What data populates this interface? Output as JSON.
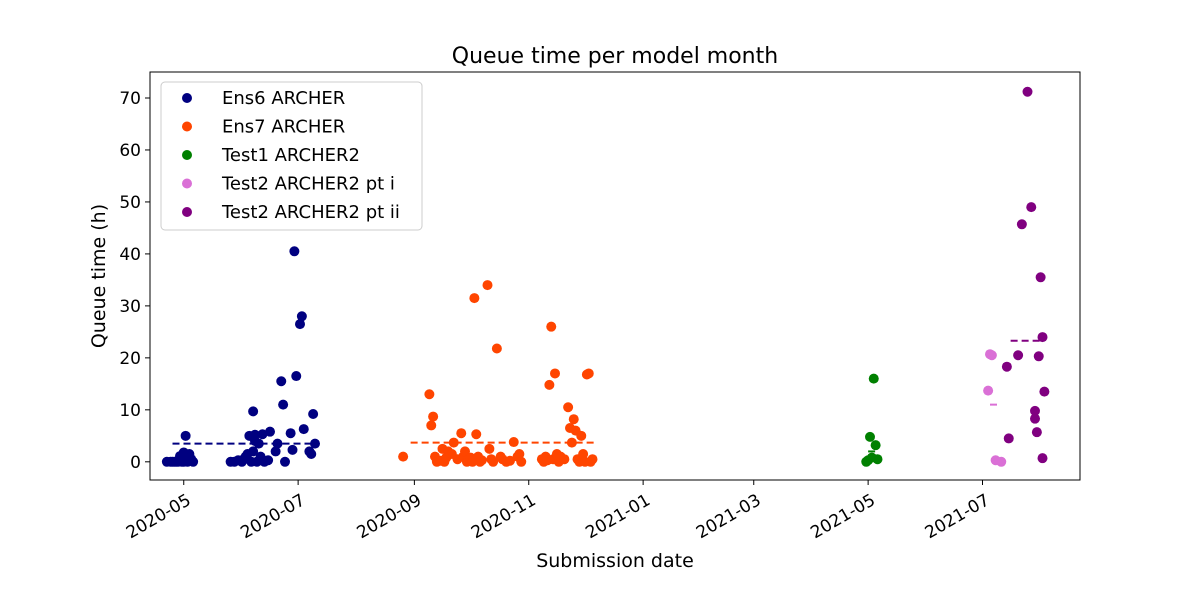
{
  "chart_data": {
    "type": "scatter",
    "title": "Queue time per model month",
    "xlabel": "Submission date",
    "ylabel": "Queue time (h)",
    "x_axis_type": "date",
    "xlim": [
      "2020-04-13",
      "2021-08-22"
    ],
    "ylim": [
      -3.5,
      75
    ],
    "x_ticks": [
      "2020-05-01",
      "2020-07-01",
      "2020-09-01",
      "2020-11-01",
      "2021-01-01",
      "2021-03-01",
      "2021-05-01",
      "2021-07-01"
    ],
    "x_tick_labels": [
      "2020-05",
      "2020-07",
      "2020-09",
      "2020-11",
      "2021-01",
      "2021-03",
      "2021-05",
      "2021-07"
    ],
    "y_ticks": [
      0,
      10,
      20,
      30,
      40,
      50,
      60,
      70
    ],
    "grid": false,
    "legend_position": "upper-left",
    "series": [
      {
        "name": "Ens6 ARCHER",
        "color": "#000080",
        "points": [
          [
            "2020-04-22",
            0
          ],
          [
            "2020-04-24",
            0
          ],
          [
            "2020-04-25",
            0
          ],
          [
            "2020-04-26",
            0
          ],
          [
            "2020-04-27",
            0
          ],
          [
            "2020-04-28",
            0
          ],
          [
            "2020-04-29",
            1.1
          ],
          [
            "2020-04-30",
            0
          ],
          [
            "2020-05-01",
            1.8
          ],
          [
            "2020-05-01",
            0
          ],
          [
            "2020-05-02",
            5
          ],
          [
            "2020-05-02",
            1
          ],
          [
            "2020-05-03",
            0
          ],
          [
            "2020-05-04",
            1.5
          ],
          [
            "2020-05-05",
            0.5
          ],
          [
            "2020-05-06",
            0
          ],
          [
            "2020-05-26",
            0
          ],
          [
            "2020-05-28",
            0
          ],
          [
            "2020-05-30",
            0.3
          ],
          [
            "2020-06-01",
            0
          ],
          [
            "2020-06-02",
            0.5
          ],
          [
            "2020-06-03",
            1
          ],
          [
            "2020-06-04",
            1.5
          ],
          [
            "2020-06-05",
            5
          ],
          [
            "2020-06-06",
            0
          ],
          [
            "2020-06-07",
            9.7
          ],
          [
            "2020-06-07",
            2
          ],
          [
            "2020-06-08",
            5.2
          ],
          [
            "2020-06-08",
            4
          ],
          [
            "2020-06-09",
            0
          ],
          [
            "2020-06-10",
            3.5
          ],
          [
            "2020-06-11",
            1
          ],
          [
            "2020-06-12",
            5.3
          ],
          [
            "2020-06-13",
            0
          ],
          [
            "2020-06-15",
            0.3
          ],
          [
            "2020-06-16",
            5.8
          ],
          [
            "2020-06-19",
            2
          ],
          [
            "2020-06-20",
            3.5
          ],
          [
            "2020-06-22",
            15.5
          ],
          [
            "2020-06-23",
            11
          ],
          [
            "2020-06-24",
            0
          ],
          [
            "2020-06-27",
            5.5
          ],
          [
            "2020-06-28",
            2.3
          ],
          [
            "2020-06-29",
            40.5
          ],
          [
            "2020-06-30",
            16.5
          ],
          [
            "2020-07-02",
            26.5
          ],
          [
            "2020-07-03",
            28
          ],
          [
            "2020-07-04",
            6.3
          ],
          [
            "2020-07-07",
            2
          ],
          [
            "2020-07-08",
            1.5
          ],
          [
            "2020-07-09",
            9.2
          ],
          [
            "2020-07-10",
            3.5
          ]
        ],
        "median_line": {
          "y": 3.5,
          "from": "2020-04-25",
          "to": "2020-07-10"
        }
      },
      {
        "name": "Ens7 ARCHER",
        "color": "#ff4500",
        "points": [
          [
            "2020-08-26",
            1
          ],
          [
            "2020-09-09",
            13
          ],
          [
            "2020-09-10",
            7
          ],
          [
            "2020-09-11",
            8.7
          ],
          [
            "2020-09-12",
            1
          ],
          [
            "2020-09-13",
            0
          ],
          [
            "2020-09-15",
            0.2
          ],
          [
            "2020-09-16",
            2.5
          ],
          [
            "2020-09-17",
            0
          ],
          [
            "2020-09-18",
            0.8
          ],
          [
            "2020-09-19",
            2
          ],
          [
            "2020-09-21",
            1.5
          ],
          [
            "2020-09-22",
            3.7
          ],
          [
            "2020-09-24",
            0.5
          ],
          [
            "2020-09-26",
            5.5
          ],
          [
            "2020-09-27",
            1
          ],
          [
            "2020-09-28",
            2
          ],
          [
            "2020-09-29",
            0
          ],
          [
            "2020-09-30",
            0.5
          ],
          [
            "2020-10-01",
            0.8
          ],
          [
            "2020-10-02",
            0
          ],
          [
            "2020-10-03",
            31.5
          ],
          [
            "2020-10-04",
            5.3
          ],
          [
            "2020-10-05",
            1
          ],
          [
            "2020-10-06",
            0
          ],
          [
            "2020-10-07",
            0.3
          ],
          [
            "2020-10-10",
            34
          ],
          [
            "2020-10-11",
            2.5
          ],
          [
            "2020-10-12",
            0.5
          ],
          [
            "2020-10-13",
            0
          ],
          [
            "2020-10-15",
            21.8
          ],
          [
            "2020-10-17",
            1
          ],
          [
            "2020-10-18",
            0.5
          ],
          [
            "2020-10-20",
            0
          ],
          [
            "2020-10-22",
            0.2
          ],
          [
            "2020-10-24",
            3.8
          ],
          [
            "2020-10-26",
            1
          ],
          [
            "2020-10-27",
            1.5
          ],
          [
            "2020-10-28",
            0
          ],
          [
            "2020-11-08",
            0.5
          ],
          [
            "2020-11-09",
            0
          ],
          [
            "2020-11-10",
            1
          ],
          [
            "2020-11-11",
            0.3
          ],
          [
            "2020-11-12",
            14.8
          ],
          [
            "2020-11-13",
            26
          ],
          [
            "2020-11-14",
            0.5
          ],
          [
            "2020-11-15",
            17
          ],
          [
            "2020-11-16",
            1.5
          ],
          [
            "2020-11-17",
            0
          ],
          [
            "2020-11-18",
            1
          ],
          [
            "2020-11-20",
            0.5
          ],
          [
            "2020-11-22",
            10.5
          ],
          [
            "2020-11-23",
            6.5
          ],
          [
            "2020-11-24",
            3.7
          ],
          [
            "2020-11-25",
            8.2
          ],
          [
            "2020-11-26",
            6
          ],
          [
            "2020-11-27",
            0.5
          ],
          [
            "2020-11-28",
            0
          ],
          [
            "2020-11-29",
            5
          ],
          [
            "2020-11-30",
            1.5
          ],
          [
            "2020-12-01",
            0
          ],
          [
            "2020-12-02",
            16.8
          ],
          [
            "2020-12-03",
            17
          ],
          [
            "2020-12-04",
            0
          ],
          [
            "2020-12-05",
            0.5
          ]
        ],
        "median_line": {
          "y": 3.7,
          "from": "2020-08-30",
          "to": "2020-12-06"
        }
      },
      {
        "name": "Test1 ARCHER2",
        "color": "#008000",
        "points": [
          [
            "2021-04-30",
            0
          ],
          [
            "2021-05-01",
            0.3
          ],
          [
            "2021-05-02",
            4.8
          ],
          [
            "2021-05-03",
            0.8
          ],
          [
            "2021-05-04",
            16
          ],
          [
            "2021-05-05",
            3.2
          ],
          [
            "2021-05-06",
            0.5
          ]
        ],
        "median_line": {
          "y": 2,
          "from": "2021-05-01",
          "to": "2021-05-06"
        }
      },
      {
        "name": "Test2 ARCHER2 pt i",
        "color": "#da70d6",
        "points": [
          [
            "2021-07-04",
            13.7
          ],
          [
            "2021-07-05",
            20.7
          ],
          [
            "2021-07-06",
            20.5
          ],
          [
            "2021-07-08",
            0.3
          ],
          [
            "2021-07-11",
            0
          ]
        ],
        "median_line": {
          "y": 11,
          "from": "2021-07-05",
          "to": "2021-07-09"
        }
      },
      {
        "name": "Test2 ARCHER2 pt ii",
        "color": "#800080",
        "points": [
          [
            "2021-07-14",
            18.3
          ],
          [
            "2021-07-15",
            4.5
          ],
          [
            "2021-07-20",
            20.5
          ],
          [
            "2021-07-22",
            45.7
          ],
          [
            "2021-07-25",
            71.2
          ],
          [
            "2021-07-27",
            49
          ],
          [
            "2021-07-29",
            9.8
          ],
          [
            "2021-07-29",
            8.3
          ],
          [
            "2021-07-30",
            5.7
          ],
          [
            "2021-07-31",
            20.3
          ],
          [
            "2021-08-01",
            35.5
          ],
          [
            "2021-08-02",
            24
          ],
          [
            "2021-08-02",
            0.7
          ],
          [
            "2021-08-03",
            13.5
          ]
        ],
        "median_line": {
          "y": 23.3,
          "from": "2021-07-16",
          "to": "2021-08-01"
        }
      }
    ]
  }
}
